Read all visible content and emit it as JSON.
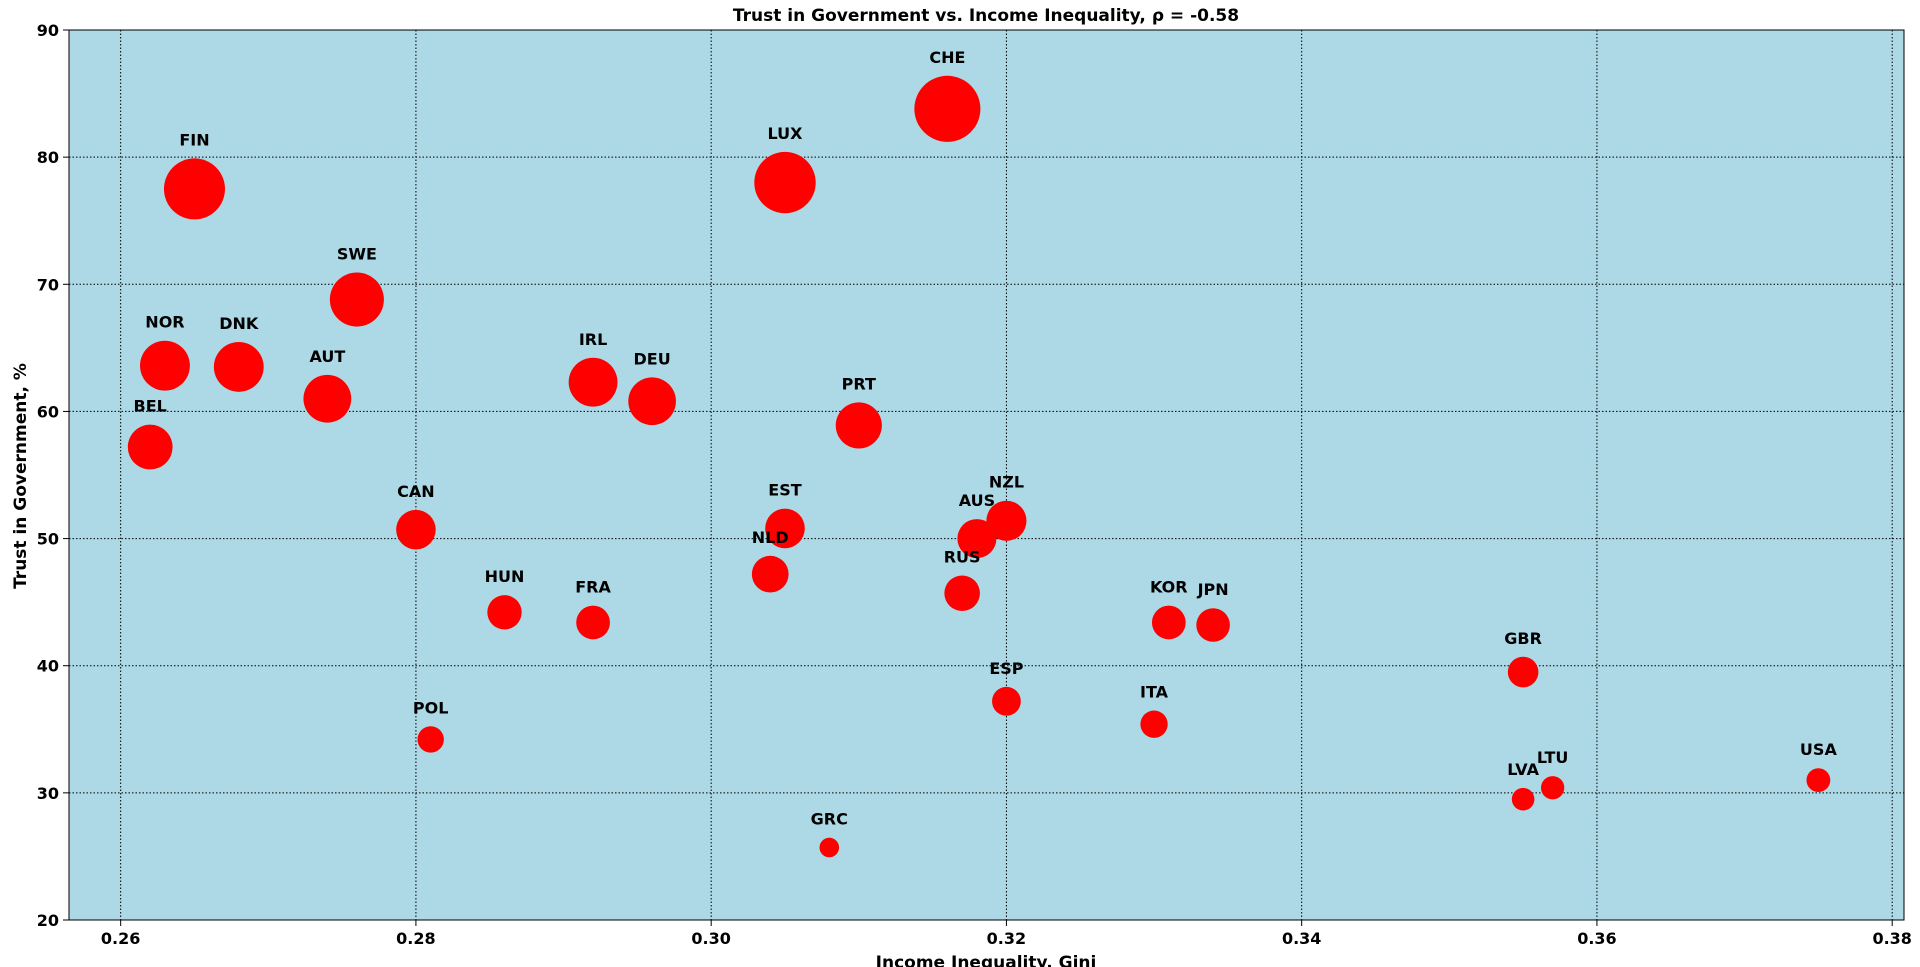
{
  "chart_data": {
    "type": "scatter",
    "title": "Trust in Government vs. Income Inequality, ρ = -0.58",
    "xlabel": "Income Inequality, Gini",
    "ylabel": "Trust in Government, %",
    "xlim": [
      0.2565,
      0.3808
    ],
    "ylim": [
      20,
      90
    ],
    "xticks": [
      0.26,
      0.28,
      0.3,
      0.32,
      0.34,
      0.36,
      0.38
    ],
    "xtick_labels": [
      "0.26",
      "0.28",
      "0.30",
      "0.32",
      "0.34",
      "0.36",
      "0.38"
    ],
    "yticks": [
      20,
      30,
      40,
      50,
      60,
      70,
      80,
      90
    ],
    "ytick_labels": [
      "20",
      "30",
      "40",
      "50",
      "60",
      "70",
      "80",
      "90"
    ],
    "grid": true,
    "background_color": "#add8e6",
    "marker_color": "#ff0000",
    "marker_size_encoding": "trust",
    "points": [
      {
        "label": "FIN",
        "x": 0.265,
        "y": 77.5
      },
      {
        "label": "NOR",
        "x": 0.263,
        "y": 63.6
      },
      {
        "label": "DNK",
        "x": 0.268,
        "y": 63.5
      },
      {
        "label": "BEL",
        "x": 0.262,
        "y": 57.2
      },
      {
        "label": "SWE",
        "x": 0.276,
        "y": 68.8
      },
      {
        "label": "AUT",
        "x": 0.274,
        "y": 61.0
      },
      {
        "label": "CAN",
        "x": 0.28,
        "y": 50.7
      },
      {
        "label": "POL",
        "x": 0.281,
        "y": 34.2
      },
      {
        "label": "HUN",
        "x": 0.286,
        "y": 44.2
      },
      {
        "label": "IRL",
        "x": 0.292,
        "y": 62.3
      },
      {
        "label": "FRA",
        "x": 0.292,
        "y": 43.4
      },
      {
        "label": "DEU",
        "x": 0.296,
        "y": 60.8
      },
      {
        "label": "LUX",
        "x": 0.305,
        "y": 78.0
      },
      {
        "label": "EST",
        "x": 0.305,
        "y": 50.8
      },
      {
        "label": "NLD",
        "x": 0.304,
        "y": 47.2
      },
      {
        "label": "GRC",
        "x": 0.308,
        "y": 25.7
      },
      {
        "label": "PRT",
        "x": 0.31,
        "y": 58.9
      },
      {
        "label": "CHE",
        "x": 0.316,
        "y": 83.8
      },
      {
        "label": "AUS",
        "x": 0.318,
        "y": 50.0
      },
      {
        "label": "NZL",
        "x": 0.32,
        "y": 51.4
      },
      {
        "label": "RUS",
        "x": 0.317,
        "y": 45.7
      },
      {
        "label": "ESP",
        "x": 0.32,
        "y": 37.2
      },
      {
        "label": "ITA",
        "x": 0.33,
        "y": 35.4
      },
      {
        "label": "KOR",
        "x": 0.331,
        "y": 43.4
      },
      {
        "label": "JPN",
        "x": 0.334,
        "y": 43.2
      },
      {
        "label": "GBR",
        "x": 0.355,
        "y": 39.5
      },
      {
        "label": "LVA",
        "x": 0.355,
        "y": 29.5
      },
      {
        "label": "LTU",
        "x": 0.357,
        "y": 30.4
      },
      {
        "label": "USA",
        "x": 0.375,
        "y": 31.0
      }
    ]
  }
}
